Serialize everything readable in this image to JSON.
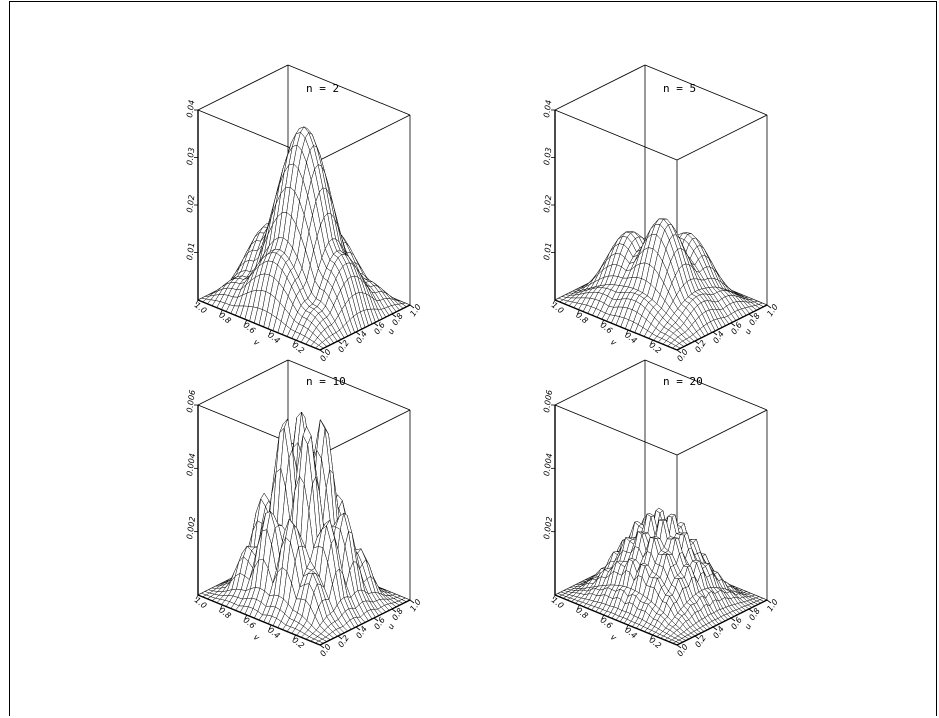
{
  "chart_data": [
    {
      "type": "surface",
      "title": "n = 2",
      "n": 2,
      "x_axis": {
        "label": "u",
        "ticks": [
          "0.0",
          "0.2",
          "0.4",
          "0.6",
          "0.8",
          "1.0"
        ]
      },
      "y_axis": {
        "label": "v",
        "ticks": [
          "1.0",
          "0.8",
          "0.6",
          "0.4",
          "0.2"
        ]
      },
      "z_axis": {
        "ticks": [
          "0.01",
          "0.02",
          "0.03",
          "0.04"
        ],
        "zlim": [
          0,
          0.04
        ]
      },
      "peak_value": 0.037
    },
    {
      "type": "surface",
      "title": "n = 5",
      "n": 5,
      "x_axis": {
        "label": "u",
        "ticks": [
          "0.0",
          "0.2",
          "0.4",
          "0.6",
          "0.8",
          "1.0"
        ]
      },
      "y_axis": {
        "label": "v",
        "ticks": [
          "1.0",
          "0.8",
          "0.6",
          "0.4",
          "0.2"
        ]
      },
      "z_axis": {
        "ticks": [
          "0.01",
          "0.02",
          "0.03",
          "0.04"
        ],
        "zlim": [
          0,
          0.04
        ]
      },
      "peak_value": 0.016
    },
    {
      "type": "surface",
      "title": "n = 10",
      "n": 10,
      "x_axis": {
        "label": "u",
        "ticks": [
          "0.0",
          "0.2",
          "0.4",
          "0.6",
          "0.8",
          "1.0"
        ]
      },
      "y_axis": {
        "label": "v",
        "ticks": [
          "1.0",
          "0.8",
          "0.6",
          "0.4",
          "0.2"
        ]
      },
      "z_axis": {
        "ticks": [
          "0.002",
          "0.004",
          "0.006"
        ],
        "zlim": [
          0,
          0.006
        ]
      },
      "peak_value": 0.0049
    },
    {
      "type": "surface",
      "title": "n = 20",
      "n": 20,
      "x_axis": {
        "label": "u",
        "ticks": [
          "0.0",
          "0.2",
          "0.4",
          "0.6",
          "0.8",
          "1.0"
        ]
      },
      "y_axis": {
        "label": "v",
        "ticks": [
          "1.0",
          "0.8",
          "0.6",
          "0.4",
          "0.2"
        ]
      },
      "z_axis": {
        "ticks": [
          "0.002",
          "0.004",
          "0.006"
        ],
        "zlim": [
          0,
          0.006
        ]
      },
      "peak_value": 0.0025
    }
  ]
}
